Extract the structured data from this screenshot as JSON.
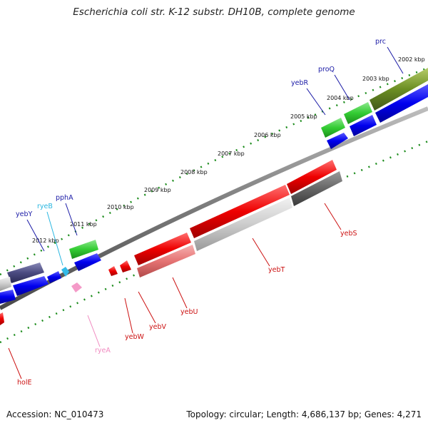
{
  "title": "Escherichia coli str. K-12 substr. DH10B, complete genome",
  "footer": {
    "accession": "Accession: NC_010473",
    "summary": "Topology: circular; Length: 4,686,137 bp; Genes: 4,271"
  },
  "ticks": [
    {
      "label": "2002 kbp",
      "pos": 2002
    },
    {
      "label": "2003 kbp",
      "pos": 2003
    },
    {
      "label": "2004 kbp",
      "pos": 2004
    },
    {
      "label": "2005 kbp",
      "pos": 2005
    },
    {
      "label": "2006 kbp",
      "pos": 2006
    },
    {
      "label": "2007 kbp",
      "pos": 2007
    },
    {
      "label": "2008 kbp",
      "pos": 2008
    },
    {
      "label": "2009 kbp",
      "pos": 2009
    },
    {
      "label": "2010 kbp",
      "pos": 2010
    },
    {
      "label": "2011 kbp",
      "pos": 2011
    },
    {
      "label": "2012 kbp",
      "pos": 2012
    }
  ],
  "genes": [
    {
      "name": "prc",
      "color": "#1a1aa6"
    },
    {
      "name": "proQ",
      "color": "#1a1aa6"
    },
    {
      "name": "yebR",
      "color": "#1a1aa6"
    },
    {
      "name": "pphA",
      "color": "#1a1aa6"
    },
    {
      "name": "ryeB",
      "color": "#29b6e0"
    },
    {
      "name": "yebY",
      "color": "#1a1aa6"
    },
    {
      "name": "yebS",
      "color": "#cc1111"
    },
    {
      "name": "yebT",
      "color": "#cc1111"
    },
    {
      "name": "yebU",
      "color": "#cc1111"
    },
    {
      "name": "yebV",
      "color": "#cc1111"
    },
    {
      "name": "yebW",
      "color": "#cc1111"
    },
    {
      "name": "ryeA",
      "color": "#f08ac0"
    },
    {
      "name": "holE",
      "color": "#cc1111"
    }
  ]
}
